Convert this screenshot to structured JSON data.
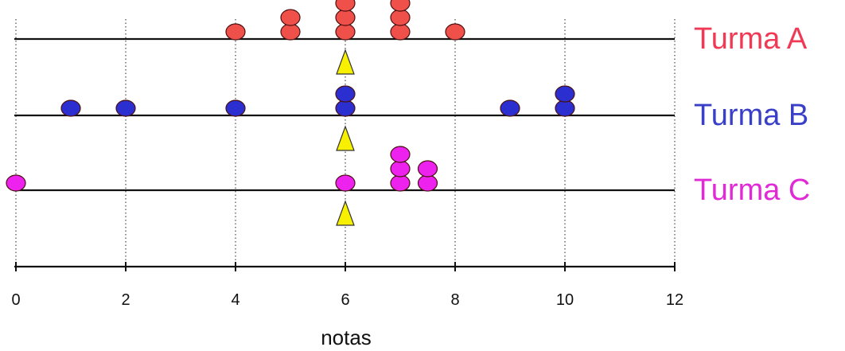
{
  "chart_data": {
    "type": "scatter",
    "xlabel": "notas",
    "xlim": [
      0,
      12
    ],
    "xticks": [
      0,
      2,
      4,
      6,
      8,
      10,
      12
    ],
    "grid": "vertical dotted lines at even ticks",
    "legend_placement": "right",
    "series": [
      {
        "name": "Turma A",
        "color": "#f0504a",
        "label_color": "#f03a55",
        "values": [
          4,
          5,
          5,
          6,
          6,
          6,
          7,
          7,
          7,
          8
        ],
        "mean": 6
      },
      {
        "name": "Turma B",
        "color": "#2b2fcf",
        "label_color": "#3a3fc8",
        "values": [
          1,
          2,
          4,
          6,
          6,
          9,
          10,
          10
        ],
        "mean": 6
      },
      {
        "name": "Turma C",
        "color": "#ee22ee",
        "label_color": "#e02ad6",
        "values": [
          0,
          6,
          7,
          7,
          7,
          7.5,
          7.5
        ],
        "mean": 6
      }
    ],
    "mean_marker": {
      "shape": "triangle",
      "color": "#f7f000"
    }
  }
}
